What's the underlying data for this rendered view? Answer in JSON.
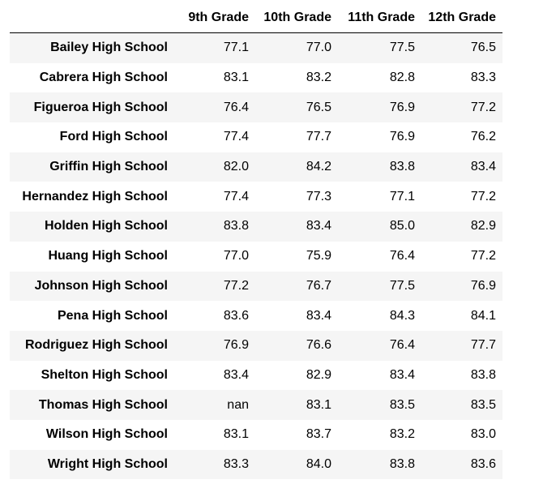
{
  "table": {
    "index_header": "",
    "columns": [
      "9th Grade",
      "10th Grade",
      "11th Grade",
      "12th Grade"
    ],
    "rows": [
      {
        "school": "Bailey High School",
        "values": [
          "77.1",
          "77.0",
          "77.5",
          "76.5"
        ]
      },
      {
        "school": "Cabrera High School",
        "values": [
          "83.1",
          "83.2",
          "82.8",
          "83.3"
        ]
      },
      {
        "school": "Figueroa High School",
        "values": [
          "76.4",
          "76.5",
          "76.9",
          "77.2"
        ]
      },
      {
        "school": "Ford High School",
        "values": [
          "77.4",
          "77.7",
          "76.9",
          "76.2"
        ]
      },
      {
        "school": "Griffin High School",
        "values": [
          "82.0",
          "84.2",
          "83.8",
          "83.4"
        ]
      },
      {
        "school": "Hernandez High School",
        "values": [
          "77.4",
          "77.3",
          "77.1",
          "77.2"
        ]
      },
      {
        "school": "Holden High School",
        "values": [
          "83.8",
          "83.4",
          "85.0",
          "82.9"
        ]
      },
      {
        "school": "Huang High School",
        "values": [
          "77.0",
          "75.9",
          "76.4",
          "77.2"
        ]
      },
      {
        "school": "Johnson High School",
        "values": [
          "77.2",
          "76.7",
          "77.5",
          "76.9"
        ]
      },
      {
        "school": "Pena High School",
        "values": [
          "83.6",
          "83.4",
          "84.3",
          "84.1"
        ]
      },
      {
        "school": "Rodriguez High School",
        "values": [
          "76.9",
          "76.6",
          "76.4",
          "77.7"
        ]
      },
      {
        "school": "Shelton High School",
        "values": [
          "83.4",
          "82.9",
          "83.4",
          "83.8"
        ]
      },
      {
        "school": "Thomas High School",
        "values": [
          "nan",
          "83.1",
          "83.5",
          "83.5"
        ]
      },
      {
        "school": "Wilson High School",
        "values": [
          "83.1",
          "83.7",
          "83.2",
          "83.0"
        ]
      },
      {
        "school": "Wright High School",
        "values": [
          "83.3",
          "84.0",
          "83.8",
          "83.6"
        ]
      }
    ]
  },
  "colors": {
    "stripe": "#f5f5f5",
    "text": "#000000",
    "rule": "#000000"
  }
}
